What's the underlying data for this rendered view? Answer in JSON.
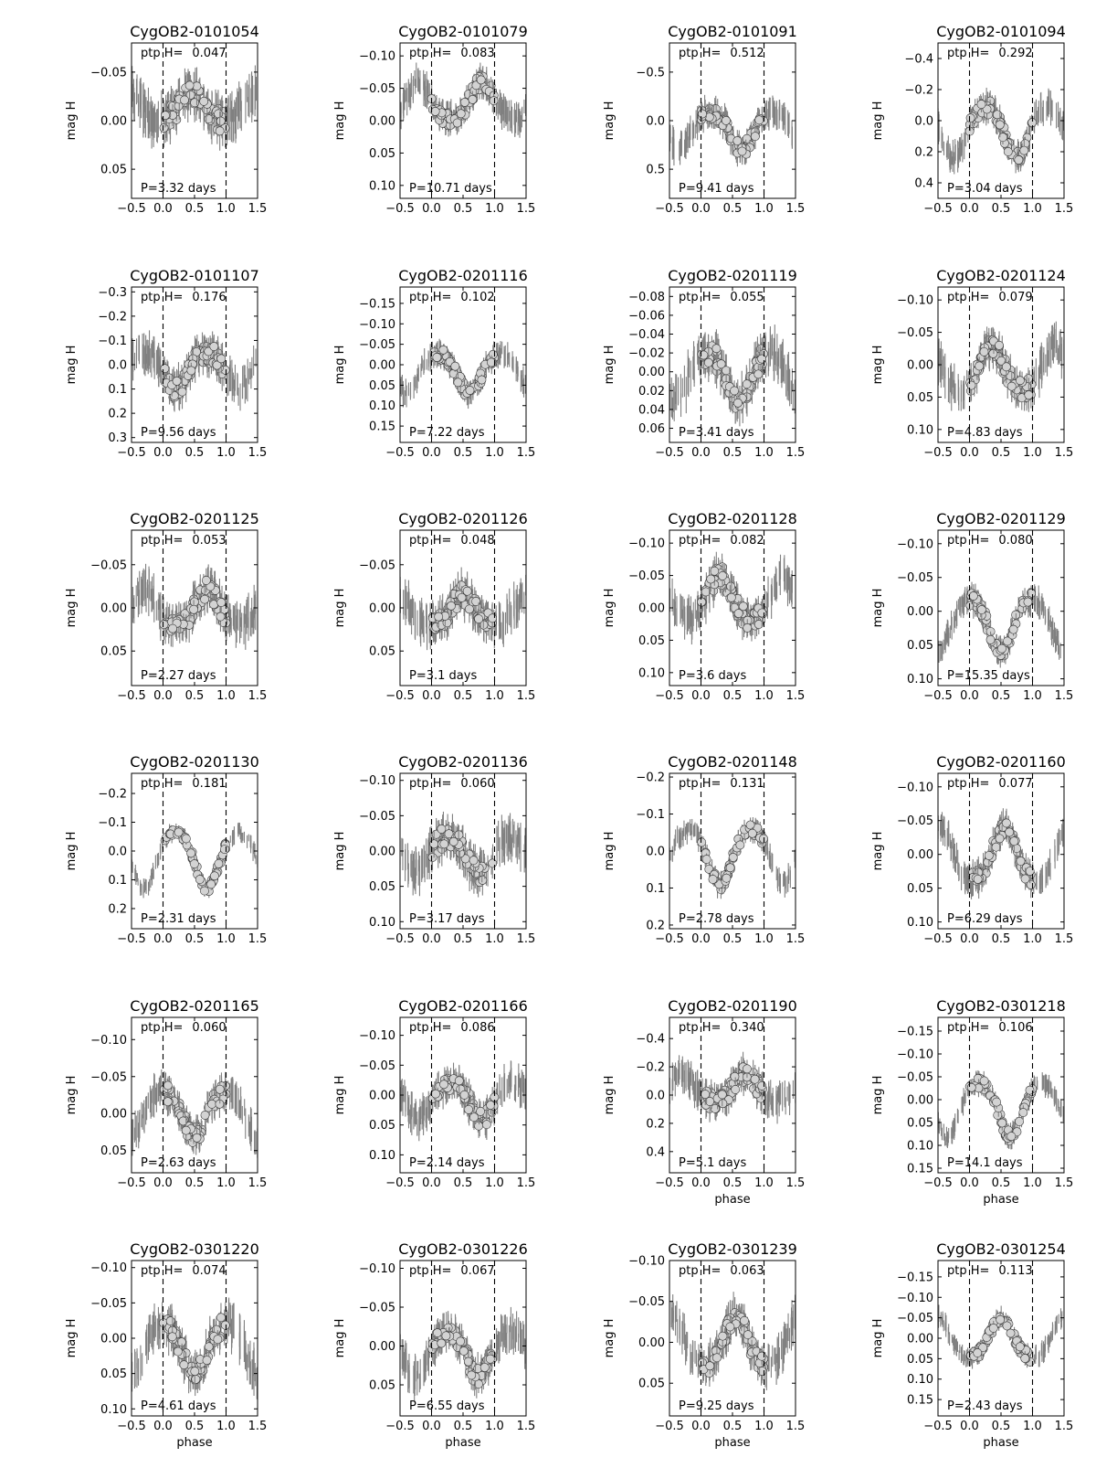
{
  "labels": {
    "ylabel": "mag H",
    "xlabel": "phase",
    "ptp_prefix": "ptp H=",
    "period_prefix": "P=",
    "period_suffix": " days"
  },
  "colors": {
    "errorbar": "#808080",
    "marker_fill": "#d3d3d3",
    "marker_edge": "#333333",
    "frame": "#000000"
  },
  "chart_data": [
    {
      "type": "scatter",
      "title": "CygOB2-0101054",
      "ptp": "0.047",
      "period": "3.32",
      "ylim": [
        -0.08,
        0.08
      ],
      "yticks": [
        -0.05,
        0.0,
        0.05
      ],
      "pattern": "bump",
      "center": 0.45,
      "offset": 0.0,
      "amp": 0.03,
      "scatter": 0.012,
      "xlim": [
        -0.5,
        1.5
      ],
      "xticks": [
        -0.5,
        0.0,
        0.5,
        1.0,
        1.5
      ]
    },
    {
      "type": "scatter",
      "title": "CygOB2-0101079",
      "ptp": "0.083",
      "period": "10.71",
      "ylim": [
        -0.12,
        0.12
      ],
      "yticks": [
        -0.1,
        -0.05,
        0.0,
        0.05,
        0.1
      ],
      "pattern": "bump",
      "center": 0.8,
      "offset": 0.0,
      "amp": 0.06,
      "scatter": 0.012,
      "xlim": [
        -0.5,
        1.5
      ],
      "xticks": [
        -0.5,
        0.0,
        0.5,
        1.0,
        1.5
      ]
    },
    {
      "type": "scatter",
      "title": "CygOB2-0101091",
      "ptp": "0.512",
      "period": "9.41",
      "ylim": [
        -0.8,
        0.8
      ],
      "yticks": [
        -0.5,
        0.0,
        0.5
      ],
      "pattern": "dip",
      "center": 0.65,
      "offset": -0.1,
      "amp": 0.4,
      "scatter": 0.08,
      "xlim": [
        -0.5,
        1.5
      ],
      "xticks": [
        -0.5,
        0.0,
        0.5,
        1.0,
        1.5
      ]
    },
    {
      "type": "scatter",
      "title": "CygOB2-0101094",
      "ptp": "0.292",
      "period": "3.04",
      "ylim": [
        -0.5,
        0.5
      ],
      "yticks": [
        -0.4,
        -0.2,
        0.0,
        0.2,
        0.4
      ],
      "pattern": "dip",
      "center": 0.75,
      "offset": -0.1,
      "amp": 0.35,
      "scatter": 0.05,
      "xlim": [
        -0.5,
        1.5
      ],
      "xticks": [
        -0.5,
        0.0,
        0.5,
        1.0,
        1.5
      ]
    },
    {
      "type": "scatter",
      "title": "CygOB2-0101107",
      "ptp": "0.176",
      "period": "9.56",
      "ylim": [
        -0.32,
        0.32
      ],
      "yticks": [
        -0.3,
        -0.2,
        -0.1,
        0.0,
        0.1,
        0.2,
        0.3
      ],
      "pattern": "dip",
      "center": 0.2,
      "offset": -0.05,
      "amp": 0.15,
      "scatter": 0.04,
      "xlim": [
        -0.5,
        1.5
      ],
      "xticks": [
        -0.5,
        0.0,
        0.5,
        1.0,
        1.5
      ]
    },
    {
      "type": "scatter",
      "title": "CygOB2-0201116",
      "ptp": "0.102",
      "period": "7.22",
      "ylim": [
        -0.19,
        0.19
      ],
      "yticks": [
        -0.15,
        -0.1,
        -0.05,
        0.0,
        0.05,
        0.1,
        0.15
      ],
      "pattern": "dip",
      "center": 0.6,
      "offset": -0.03,
      "amp": 0.1,
      "scatter": 0.015,
      "xlim": [
        -0.5,
        1.5
      ],
      "xticks": [
        -0.5,
        0.0,
        0.5,
        1.0,
        1.5
      ]
    },
    {
      "type": "scatter",
      "title": "CygOB2-0201119",
      "ptp": "0.055",
      "period": "3.41",
      "ylim": [
        -0.09,
        0.075
      ],
      "yticks": [
        -0.08,
        -0.06,
        -0.04,
        -0.02,
        0.0,
        0.02,
        0.04,
        0.06
      ],
      "pattern": "dip",
      "center": 0.6,
      "offset": -0.02,
      "amp": 0.05,
      "scatter": 0.012,
      "xlim": [
        -0.5,
        1.5
      ],
      "xticks": [
        -0.5,
        0.0,
        0.5,
        1.0,
        1.5
      ]
    },
    {
      "type": "scatter",
      "title": "CygOB2-0201124",
      "ptp": "0.079",
      "period": "4.83",
      "ylim": [
        -0.12,
        0.12
      ],
      "yticks": [
        -0.1,
        -0.05,
        0.0,
        0.05,
        0.1
      ],
      "pattern": "bump",
      "center": 0.35,
      "offset": 0.04,
      "amp": 0.07,
      "scatter": 0.015,
      "xlim": [
        -0.5,
        1.5
      ],
      "xticks": [
        -0.5,
        0.0,
        0.5,
        1.0,
        1.5
      ]
    },
    {
      "type": "scatter",
      "title": "CygOB2-0201125",
      "ptp": "0.053",
      "period": "2.27",
      "ylim": [
        -0.09,
        0.09
      ],
      "yticks": [
        -0.05,
        0.0,
        0.05
      ],
      "pattern": "bump",
      "center": 0.7,
      "offset": 0.02,
      "amp": 0.04,
      "scatter": 0.012,
      "xlim": [
        -0.5,
        1.5
      ],
      "xticks": [
        -0.5,
        0.0,
        0.5,
        1.0,
        1.5
      ]
    },
    {
      "type": "scatter",
      "title": "CygOB2-0201126",
      "ptp": "0.048",
      "period": "3.1",
      "ylim": [
        -0.09,
        0.09
      ],
      "yticks": [
        -0.05,
        0.0,
        0.05
      ],
      "pattern": "bump",
      "center": 0.5,
      "offset": 0.02,
      "amp": 0.035,
      "scatter": 0.012,
      "xlim": [
        -0.5,
        1.5
      ],
      "xticks": [
        -0.5,
        0.0,
        0.5,
        1.0,
        1.5
      ]
    },
    {
      "type": "scatter",
      "title": "CygOB2-0201128",
      "ptp": "0.082",
      "period": "3.6",
      "ylim": [
        -0.12,
        0.12
      ],
      "yticks": [
        -0.1,
        -0.05,
        0.0,
        0.05,
        0.1
      ],
      "pattern": "bump",
      "center": 0.3,
      "offset": 0.02,
      "amp": 0.07,
      "scatter": 0.015,
      "xlim": [
        -0.5,
        1.5
      ],
      "xticks": [
        -0.5,
        0.0,
        0.5,
        1.0,
        1.5
      ]
    },
    {
      "type": "scatter",
      "title": "CygOB2-0201129",
      "ptp": "0.080",
      "period": "15.35",
      "ylim": [
        -0.12,
        0.11
      ],
      "yticks": [
        -0.1,
        -0.05,
        0.0,
        0.05,
        0.1
      ],
      "pattern": "dip",
      "center": 0.5,
      "offset": -0.02,
      "amp": 0.08,
      "scatter": 0.01,
      "xlim": [
        -0.5,
        1.5
      ],
      "xticks": [
        -0.5,
        0.0,
        0.5,
        1.0,
        1.5
      ]
    },
    {
      "type": "scatter",
      "title": "CygOB2-0201130",
      "ptp": "0.181",
      "period": "2.31",
      "ylim": [
        -0.27,
        0.27
      ],
      "yticks": [
        -0.2,
        -0.1,
        0.0,
        0.1,
        0.2
      ],
      "pattern": "dip",
      "center": 0.7,
      "offset": -0.07,
      "amp": 0.2,
      "scatter": 0.015,
      "xlim": [
        -0.5,
        1.5
      ],
      "xticks": [
        -0.5,
        0.0,
        0.5,
        1.0,
        1.5
      ]
    },
    {
      "type": "scatter",
      "title": "CygOB2-0201136",
      "ptp": "0.060",
      "period": "3.17",
      "ylim": [
        -0.11,
        0.11
      ],
      "yticks": [
        -0.1,
        -0.05,
        0.0,
        0.05,
        0.1
      ],
      "pattern": "dip",
      "center": 0.75,
      "offset": -0.02,
      "amp": 0.05,
      "scatter": 0.015,
      "xlim": [
        -0.5,
        1.5
      ],
      "xticks": [
        -0.5,
        0.0,
        0.5,
        1.0,
        1.5
      ]
    },
    {
      "type": "scatter",
      "title": "CygOB2-0201148",
      "ptp": "0.131",
      "period": "2.78",
      "ylim": [
        -0.21,
        0.21
      ],
      "yticks": [
        -0.2,
        -0.1,
        0.0,
        0.1,
        0.2
      ],
      "pattern": "dip",
      "center": 0.3,
      "offset": -0.06,
      "amp": 0.15,
      "scatter": 0.015,
      "xlim": [
        -0.5,
        1.5
      ],
      "xticks": [
        -0.5,
        0.0,
        0.5,
        1.0,
        1.5
      ]
    },
    {
      "type": "scatter",
      "title": "CygOB2-0201160",
      "ptp": "0.077",
      "period": "6.29",
      "ylim": [
        -0.12,
        0.11
      ],
      "yticks": [
        -0.1,
        -0.05,
        0.0,
        0.05,
        0.1
      ],
      "pattern": "bump",
      "center": 0.55,
      "offset": 0.04,
      "amp": 0.08,
      "scatter": 0.012,
      "xlim": [
        -0.5,
        1.5
      ],
      "xticks": [
        -0.5,
        0.0,
        0.5,
        1.0,
        1.5
      ]
    },
    {
      "type": "scatter",
      "title": "CygOB2-0201165",
      "ptp": "0.060",
      "period": "2.63",
      "ylim": [
        -0.13,
        0.08
      ],
      "yticks": [
        -0.1,
        -0.05,
        0.0,
        0.05
      ],
      "pattern": "dip",
      "center": 0.5,
      "offset": -0.03,
      "amp": 0.06,
      "scatter": 0.012,
      "xlim": [
        -0.5,
        1.5
      ],
      "xticks": [
        -0.5,
        0.0,
        0.5,
        1.0,
        1.5
      ]
    },
    {
      "type": "scatter",
      "title": "CygOB2-0201166",
      "ptp": "0.086",
      "period": "2.14",
      "ylim": [
        -0.13,
        0.13
      ],
      "yticks": [
        -0.1,
        -0.05,
        0.0,
        0.05,
        0.1
      ],
      "pattern": "dip",
      "center": 0.8,
      "offset": -0.02,
      "amp": 0.06,
      "scatter": 0.015,
      "xlim": [
        -0.5,
        1.5
      ],
      "xticks": [
        -0.5,
        0.0,
        0.5,
        1.0,
        1.5
      ]
    },
    {
      "type": "scatter",
      "title": "CygOB2-0201190",
      "ptp": "0.340",
      "period": "5.1",
      "ylim": [
        -0.55,
        0.55
      ],
      "yticks": [
        -0.4,
        -0.2,
        0.0,
        0.2,
        0.4
      ],
      "pattern": "bump",
      "center": 0.7,
      "offset": 0.05,
      "amp": 0.2,
      "scatter": 0.06,
      "xlim": [
        -0.5,
        1.5
      ],
      "xticks": [
        -0.5,
        0.0,
        0.5,
        1.0,
        1.5
      ]
    },
    {
      "type": "scatter",
      "title": "CygOB2-0301218",
      "ptp": "0.106",
      "period": "14.1",
      "ylim": [
        -0.18,
        0.16
      ],
      "yticks": [
        -0.15,
        -0.1,
        -0.05,
        0.0,
        0.05,
        0.1,
        0.15
      ],
      "pattern": "dip",
      "center": 0.65,
      "offset": -0.04,
      "amp": 0.12,
      "scatter": 0.012,
      "xlim": [
        -0.5,
        1.5
      ],
      "xticks": [
        -0.5,
        0.0,
        0.5,
        1.0,
        1.5
      ]
    },
    {
      "type": "scatter",
      "title": "CygOB2-0301220",
      "ptp": "0.074",
      "period": "4.61",
      "ylim": [
        -0.11,
        0.11
      ],
      "yticks": [
        -0.1,
        -0.05,
        0.0,
        0.05,
        0.1
      ],
      "pattern": "dip",
      "center": 0.5,
      "offset": -0.02,
      "amp": 0.07,
      "scatter": 0.015,
      "xlim": [
        -0.5,
        1.5
      ],
      "xticks": [
        -0.5,
        0.0,
        0.5,
        1.0,
        1.5
      ]
    },
    {
      "type": "scatter",
      "title": "CygOB2-0301226",
      "ptp": "0.067",
      "period": "6.55",
      "ylim": [
        -0.11,
        0.09
      ],
      "yticks": [
        -0.1,
        -0.05,
        0.0,
        0.05
      ],
      "pattern": "dip",
      "center": 0.75,
      "offset": -0.02,
      "amp": 0.06,
      "scatter": 0.012,
      "xlim": [
        -0.5,
        1.5
      ],
      "xticks": [
        -0.5,
        0.0,
        0.5,
        1.0,
        1.5
      ]
    },
    {
      "type": "scatter",
      "title": "CygOB2-0301239",
      "ptp": "0.063",
      "period": "9.25",
      "ylim": [
        -0.1,
        0.09
      ],
      "yticks": [
        -0.1,
        -0.05,
        0.0,
        0.05
      ],
      "pattern": "bump",
      "center": 0.55,
      "offset": 0.03,
      "amp": 0.06,
      "scatter": 0.012,
      "xlim": [
        -0.5,
        1.5
      ],
      "xticks": [
        -0.5,
        0.0,
        0.5,
        1.0,
        1.5
      ]
    },
    {
      "type": "scatter",
      "title": "CygOB2-0301254",
      "ptp": "0.113",
      "period": "2.43",
      "ylim": [
        -0.19,
        0.19
      ],
      "yticks": [
        -0.15,
        -0.1,
        -0.05,
        0.0,
        0.05,
        0.1,
        0.15
      ],
      "pattern": "bump",
      "center": 0.5,
      "offset": 0.05,
      "amp": 0.1,
      "scatter": 0.012,
      "xlim": [
        -0.5,
        1.5
      ],
      "xticks": [
        -0.5,
        0.0,
        0.5,
        1.0,
        1.5
      ]
    }
  ]
}
